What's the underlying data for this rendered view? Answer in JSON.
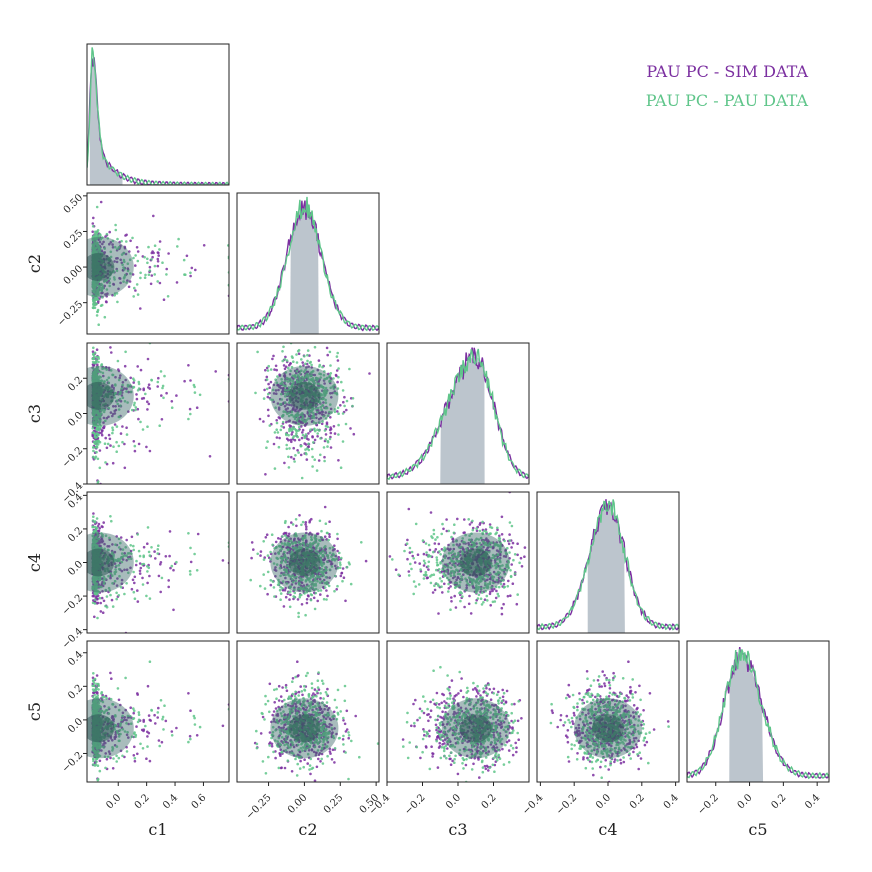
{
  "chart_data": {
    "type": "corner",
    "params": [
      "c1",
      "c2",
      "c3",
      "c4",
      "c5"
    ],
    "ranges": {
      "c1": [
        -0.22,
        0.78
      ],
      "c2": [
        -0.47,
        0.52
      ],
      "c3": [
        -0.4,
        0.4
      ],
      "c4": [
        -0.42,
        0.42
      ],
      "c5": [
        -0.37,
        0.47
      ]
    },
    "ticks": {
      "c1": {
        "x": [
          0.0,
          0.2,
          0.4,
          0.6
        ],
        "y": []
      },
      "c2": {
        "x": [
          -0.25,
          0.0,
          0.25,
          0.5
        ],
        "y": [
          -0.25,
          0.0,
          0.25,
          0.5
        ]
      },
      "c3": {
        "x": [
          -0.4,
          -0.2,
          0.0,
          0.2
        ],
        "y": [
          -0.4,
          -0.2,
          0.0,
          0.2
        ]
      },
      "c4": {
        "x": [
          -0.4,
          -0.2,
          0.0,
          0.2,
          0.4
        ],
        "y": [
          -0.4,
          -0.2,
          0.0,
          0.2,
          0.4
        ]
      },
      "c5": {
        "x": [
          -0.2,
          0.0,
          0.2,
          0.4
        ],
        "y": [
          -0.2,
          0.0,
          0.2,
          0.4
        ]
      }
    },
    "tick_labels": {
      "c1": {
        "x": [
          "0.0",
          "0.2",
          "0.4",
          "0.6"
        ],
        "y": []
      },
      "c2": {
        "x": [
          "−0.25",
          "0.00",
          "0.25",
          "0.50"
        ],
        "y": [
          "−0.25",
          "0.00",
          "0.25",
          "0.50"
        ]
      },
      "c3": {
        "x": [
          "−0.4",
          "−0.2",
          "0.0",
          "0.2"
        ],
        "y": [
          "−0.4",
          "−0.2",
          "0.0",
          "0.2"
        ]
      },
      "c4": {
        "x": [
          "−0.4",
          "−0.2",
          "0.0",
          "0.2",
          "0.4"
        ],
        "y": [
          "−0.4",
          "−0.2",
          "0.0",
          "0.2",
          "0.4"
        ]
      },
      "c5": {
        "x": [
          "−0.2",
          "0.0",
          "0.2",
          "0.4"
        ],
        "y": [
          "−0.2",
          "0.0",
          "0.2",
          "0.4"
        ]
      }
    },
    "marginals": {
      "c1": {
        "mode": -0.18,
        "spread_lo": 0.03,
        "spread_hi": 0.16,
        "tail": 0.12,
        "shaded": [
          -0.2,
          0.03
        ]
      },
      "c2": {
        "mode": 0.0,
        "spread_lo": 0.12,
        "spread_hi": 0.12,
        "tail": 0.0,
        "shaded": [
          -0.1,
          0.1
        ]
      },
      "c3": {
        "mode": 0.1,
        "spread_lo": 0.16,
        "spread_hi": 0.1,
        "tail": 0.0,
        "shaded": [
          -0.1,
          0.15
        ]
      },
      "c4": {
        "mode": 0.0,
        "spread_lo": 0.11,
        "spread_hi": 0.1,
        "tail": 0.0,
        "shaded": [
          -0.12,
          0.1
        ]
      },
      "c5": {
        "mode": -0.05,
        "spread_lo": 0.1,
        "spread_hi": 0.12,
        "tail": 0.0,
        "shaded": [
          -0.12,
          0.08
        ]
      }
    },
    "series": [
      {
        "name": "PAU PC - SIM DATA",
        "color": "#7b2fa0"
      },
      {
        "name": "PAU PC - PAU DATA",
        "color": "#5fc58a"
      }
    ],
    "shade_color": "#6b7f91",
    "legend_position": "top-right"
  }
}
